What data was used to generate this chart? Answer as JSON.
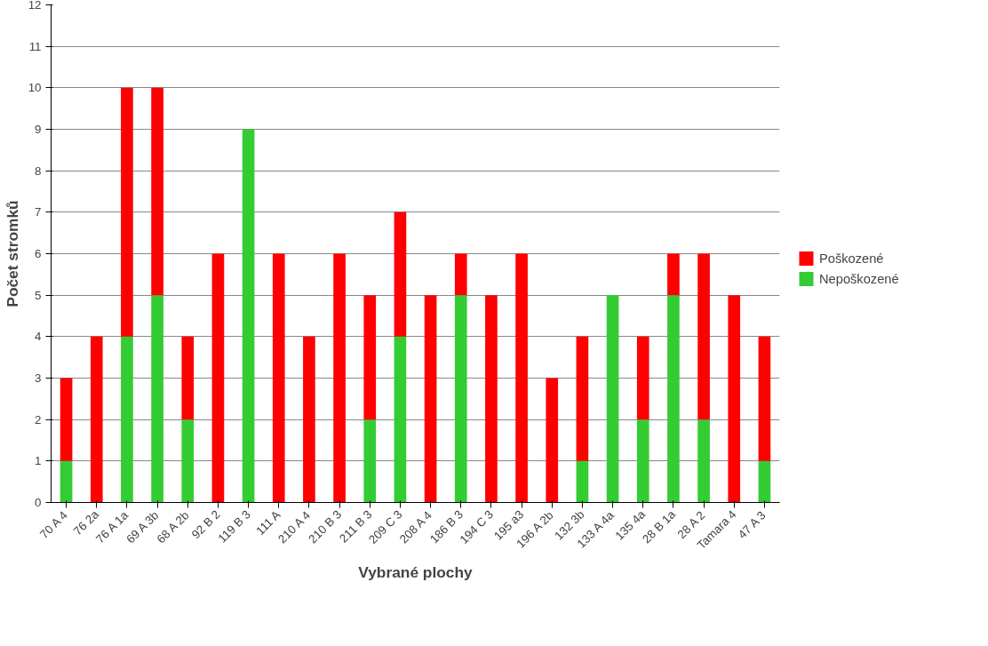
{
  "chart_data": {
    "type": "bar",
    "stacked": true,
    "xlabel": "Vybrané plochy",
    "ylabel": "Počet stromků",
    "categories": [
      "70 A 4",
      "76 2a",
      "76 A 1a",
      "69 A 3b",
      "68 A 2b",
      "92 B 2",
      "119 B 3",
      "111 A",
      "210 A 4",
      "210 B 3",
      "211 B 3",
      "209 C 3",
      "208 A 4",
      "186 B 3",
      "194 C 3",
      "195 a3",
      "196 A 2b",
      "132 3b",
      "133 A 4a",
      "135 4a",
      "28 B 1a",
      "28 A 2",
      "Tamara 4",
      "47 A 3"
    ],
    "series": [
      {
        "name": "Nepoškozené",
        "color": "#33cc33",
        "values": [
          1,
          0,
          4,
          5,
          2,
          0,
          9,
          0,
          0,
          0,
          2,
          4,
          0,
          5,
          0,
          0,
          0,
          1,
          5,
          2,
          5,
          2,
          0,
          1
        ]
      },
      {
        "name": "Poškozené",
        "color": "#ff0000",
        "values": [
          2,
          4,
          6,
          5,
          2,
          6,
          0,
          6,
          4,
          6,
          3,
          3,
          5,
          1,
          5,
          6,
          3,
          3,
          0,
          2,
          1,
          4,
          5,
          3
        ]
      }
    ],
    "ylim": [
      0,
      12
    ],
    "yticks": [
      0,
      1,
      2,
      3,
      4,
      5,
      6,
      7,
      8,
      9,
      10,
      11,
      12
    ],
    "grid": "y",
    "legend": "right"
  }
}
